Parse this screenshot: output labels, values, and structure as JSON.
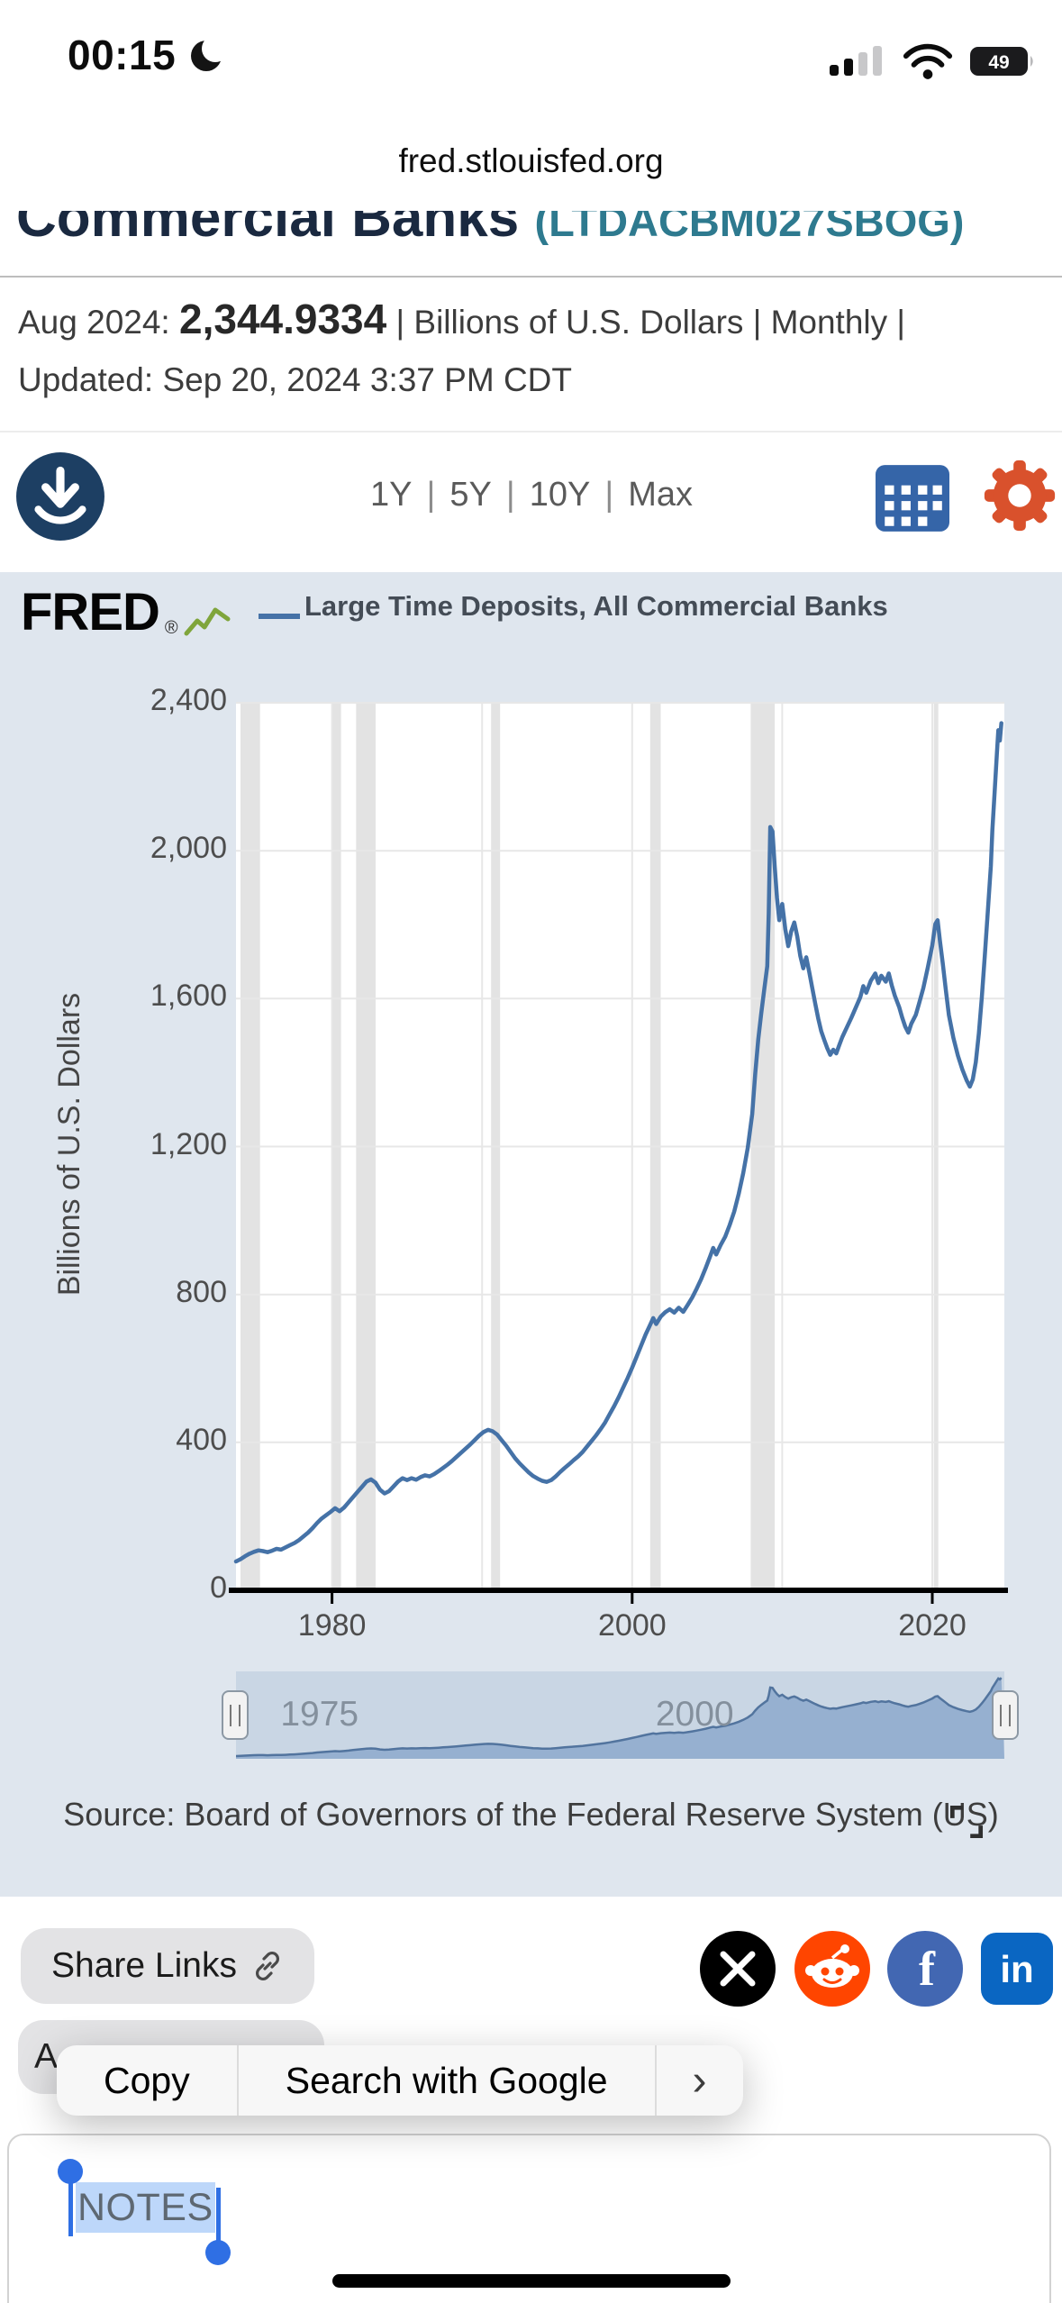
{
  "status_bar": {
    "time": "00:15",
    "battery_level": "49"
  },
  "url_bar": {
    "domain": "fred.stlouisfed.org"
  },
  "page_header": {
    "clipped_title": "Commercial Banks",
    "clipped_series_id": "(LTDACBM027SBOG)"
  },
  "series_info": {
    "date_label": "Aug 2024:",
    "value": "2,344.9334",
    "sep": "|",
    "units": "Billions of U.S. Dollars",
    "frequency": "Monthly",
    "updated_label": "Updated:",
    "updated": "Sep 20, 2024 3:37 PM CDT"
  },
  "toolbar": {
    "ranges": [
      "1Y",
      "5Y",
      "10Y",
      "Max"
    ],
    "separator": "|"
  },
  "chart_header": {
    "logo_text": "FRED",
    "logo_reg": "®",
    "legend_label": "Large Time Deposits, All Commercial Banks"
  },
  "chart_data": {
    "type": "line",
    "title": "Large Time Deposits, All Commercial Banks",
    "ylabel": "Billions of U.S. Dollars",
    "frequency": "Monthly",
    "last_point": {
      "date": "Aug 2024",
      "value": 2344.9334
    },
    "xlim": [
      1973.6,
      2024.8
    ],
    "ylim": [
      0,
      2400
    ],
    "yticks": [
      0,
      400,
      800,
      1200,
      1600,
      2000,
      2400
    ],
    "ytick_labels": [
      "0",
      "400",
      "800",
      "1,200",
      "1,600",
      "2,000",
      "2,400"
    ],
    "xticks": [
      1980,
      2000,
      2020
    ],
    "xtick_labels": [
      "1980",
      "2000",
      "2020"
    ],
    "grid_years": [
      1980,
      1990,
      2000,
      2010,
      2020
    ],
    "recessions": [
      [
        1973.9,
        1975.2
      ],
      [
        1980.0,
        1980.6
      ],
      [
        1981.6,
        1982.9
      ],
      [
        1990.6,
        1991.2
      ],
      [
        2001.2,
        2001.9
      ],
      [
        2007.9,
        2009.5
      ],
      [
        2020.1,
        2020.4
      ]
    ],
    "line_color": "#4572a7",
    "grid": true,
    "legend_position": "top",
    "slider": {
      "labels": [
        {
          "text": "1975",
          "year": 1975
        },
        {
          "text": "2000",
          "year": 2000
        }
      ]
    },
    "series": [
      {
        "name": "Large Time Deposits, All Commercial Banks",
        "points": [
          [
            1973.6,
            78
          ],
          [
            1973.9,
            84
          ],
          [
            1974.2,
            92
          ],
          [
            1974.5,
            99
          ],
          [
            1974.8,
            104
          ],
          [
            1975.1,
            108
          ],
          [
            1975.4,
            106
          ],
          [
            1975.7,
            103
          ],
          [
            1976,
            107
          ],
          [
            1976.3,
            112
          ],
          [
            1976.6,
            110
          ],
          [
            1976.9,
            116
          ],
          [
            1977.2,
            122
          ],
          [
            1977.5,
            128
          ],
          [
            1977.8,
            136
          ],
          [
            1978.1,
            146
          ],
          [
            1978.4,
            156
          ],
          [
            1978.7,
            168
          ],
          [
            1979,
            182
          ],
          [
            1979.3,
            194
          ],
          [
            1979.6,
            203
          ],
          [
            1979.9,
            212
          ],
          [
            1980.2,
            222
          ],
          [
            1980.5,
            214
          ],
          [
            1980.8,
            224
          ],
          [
            1981.1,
            238
          ],
          [
            1981.4,
            252
          ],
          [
            1981.7,
            266
          ],
          [
            1982,
            280
          ],
          [
            1982.3,
            294
          ],
          [
            1982.6,
            300
          ],
          [
            1982.9,
            291
          ],
          [
            1983.2,
            272
          ],
          [
            1983.5,
            262
          ],
          [
            1983.8,
            268
          ],
          [
            1984.1,
            281
          ],
          [
            1984.4,
            294
          ],
          [
            1984.7,
            303
          ],
          [
            1985,
            298
          ],
          [
            1985.3,
            303
          ],
          [
            1985.6,
            299
          ],
          [
            1985.9,
            306
          ],
          [
            1986.2,
            311
          ],
          [
            1986.5,
            308
          ],
          [
            1986.8,
            314
          ],
          [
            1987.1,
            322
          ],
          [
            1987.4,
            331
          ],
          [
            1987.7,
            340
          ],
          [
            1988,
            350
          ],
          [
            1988.3,
            361
          ],
          [
            1988.6,
            372
          ],
          [
            1988.9,
            383
          ],
          [
            1989.2,
            394
          ],
          [
            1989.5,
            406
          ],
          [
            1989.8,
            418
          ],
          [
            1990.1,
            428
          ],
          [
            1990.4,
            434
          ],
          [
            1990.7,
            430
          ],
          [
            1991,
            421
          ],
          [
            1991.3,
            406
          ],
          [
            1991.6,
            391
          ],
          [
            1991.9,
            374
          ],
          [
            1992.2,
            357
          ],
          [
            1992.5,
            343
          ],
          [
            1992.8,
            331
          ],
          [
            1993.1,
            319
          ],
          [
            1993.4,
            309
          ],
          [
            1993.7,
            302
          ],
          [
            1994,
            296
          ],
          [
            1994.3,
            293
          ],
          [
            1994.6,
            298
          ],
          [
            1994.9,
            308
          ],
          [
            1995.2,
            320
          ],
          [
            1995.5,
            331
          ],
          [
            1995.8,
            341
          ],
          [
            1996.1,
            352
          ],
          [
            1996.4,
            362
          ],
          [
            1996.7,
            374
          ],
          [
            1997,
            389
          ],
          [
            1997.3,
            404
          ],
          [
            1997.6,
            419
          ],
          [
            1997.9,
            436
          ],
          [
            1998.2,
            454
          ],
          [
            1998.5,
            476
          ],
          [
            1998.8,
            498
          ],
          [
            1999.1,
            522
          ],
          [
            1999.4,
            548
          ],
          [
            1999.7,
            574
          ],
          [
            2000,
            602
          ],
          [
            2000.3,
            632
          ],
          [
            2000.6,
            662
          ],
          [
            2000.9,
            692
          ],
          [
            2001.2,
            718
          ],
          [
            2001.4,
            736
          ],
          [
            2001.6,
            720
          ],
          [
            2001.9,
            740
          ],
          [
            2002.2,
            752
          ],
          [
            2002.5,
            760
          ],
          [
            2002.8,
            751
          ],
          [
            2003.1,
            764
          ],
          [
            2003.4,
            753
          ],
          [
            2003.7,
            772
          ],
          [
            2004,
            792
          ],
          [
            2004.3,
            816
          ],
          [
            2004.6,
            842
          ],
          [
            2004.9,
            872
          ],
          [
            2005.2,
            904
          ],
          [
            2005.4,
            926
          ],
          [
            2005.6,
            908
          ],
          [
            2005.9,
            934
          ],
          [
            2006.2,
            956
          ],
          [
            2006.5,
            988
          ],
          [
            2006.8,
            1024
          ],
          [
            2007.1,
            1072
          ],
          [
            2007.4,
            1128
          ],
          [
            2007.7,
            1196
          ],
          [
            2008,
            1288
          ],
          [
            2008.2,
            1396
          ],
          [
            2008.4,
            1490
          ],
          [
            2008.6,
            1560
          ],
          [
            2008.8,
            1624
          ],
          [
            2009,
            1688
          ],
          [
            2009.1,
            1830
          ],
          [
            2009.2,
            2064
          ],
          [
            2009.35,
            2052
          ],
          [
            2009.5,
            1956
          ],
          [
            2009.65,
            1872
          ],
          [
            2009.8,
            1812
          ],
          [
            2010,
            1856
          ],
          [
            2010.2,
            1788
          ],
          [
            2010.4,
            1742
          ],
          [
            2010.6,
            1782
          ],
          [
            2010.8,
            1806
          ],
          [
            2011,
            1768
          ],
          [
            2011.2,
            1716
          ],
          [
            2011.4,
            1682
          ],
          [
            2011.6,
            1712
          ],
          [
            2011.8,
            1672
          ],
          [
            2012,
            1628
          ],
          [
            2012.2,
            1586
          ],
          [
            2012.4,
            1546
          ],
          [
            2012.6,
            1512
          ],
          [
            2012.8,
            1488
          ],
          [
            2013,
            1466
          ],
          [
            2013.2,
            1448
          ],
          [
            2013.4,
            1462
          ],
          [
            2013.6,
            1452
          ],
          [
            2013.8,
            1474
          ],
          [
            2014,
            1496
          ],
          [
            2014.3,
            1522
          ],
          [
            2014.6,
            1548
          ],
          [
            2014.9,
            1576
          ],
          [
            2015.2,
            1604
          ],
          [
            2015.4,
            1634
          ],
          [
            2015.6,
            1616
          ],
          [
            2015.9,
            1648
          ],
          [
            2016.2,
            1668
          ],
          [
            2016.4,
            1642
          ],
          [
            2016.6,
            1662
          ],
          [
            2016.9,
            1646
          ],
          [
            2017.1,
            1668
          ],
          [
            2017.3,
            1636
          ],
          [
            2017.5,
            1608
          ],
          [
            2017.8,
            1576
          ],
          [
            2018,
            1548
          ],
          [
            2018.2,
            1524
          ],
          [
            2018.4,
            1508
          ],
          [
            2018.6,
            1532
          ],
          [
            2018.9,
            1556
          ],
          [
            2019.1,
            1584
          ],
          [
            2019.4,
            1628
          ],
          [
            2019.7,
            1684
          ],
          [
            2020,
            1744
          ],
          [
            2020.2,
            1802
          ],
          [
            2020.35,
            1812
          ],
          [
            2020.5,
            1758
          ],
          [
            2020.7,
            1694
          ],
          [
            2020.9,
            1624
          ],
          [
            2021.1,
            1556
          ],
          [
            2021.4,
            1494
          ],
          [
            2021.7,
            1446
          ],
          [
            2022,
            1408
          ],
          [
            2022.3,
            1378
          ],
          [
            2022.5,
            1362
          ],
          [
            2022.7,
            1382
          ],
          [
            2022.9,
            1428
          ],
          [
            2023.1,
            1506
          ],
          [
            2023.3,
            1604
          ],
          [
            2023.5,
            1716
          ],
          [
            2023.7,
            1838
          ],
          [
            2023.9,
            1958
          ],
          [
            2024,
            2056
          ],
          [
            2024.15,
            2158
          ],
          [
            2024.3,
            2262
          ],
          [
            2024.4,
            2326
          ],
          [
            2024.5,
            2298
          ],
          [
            2024.6,
            2344.9
          ]
        ]
      }
    ]
  },
  "source_line": {
    "text": "Source: Board of Governors of the Federal Reserve System (US)"
  },
  "share": {
    "share_links_label": "Share Links",
    "partial_button_label": "A",
    "social": [
      "x",
      "reddit",
      "facebook",
      "linkedin"
    ]
  },
  "context_menu": {
    "items": [
      "Copy",
      "Search with Google"
    ],
    "chevron": "›"
  },
  "notes": {
    "label": "NOTES"
  },
  "colors": {
    "accent_line": "#4572a7",
    "panel_bg": "#dfe6ee",
    "recession_band": "#e3e3e3",
    "download_btn": "#1d3f63",
    "calendar_btn": "#3565a8",
    "gear_btn": "#d9512c",
    "x_brand": "#000000",
    "reddit_brand": "#ff4500",
    "facebook_brand": "#4267b2",
    "linkedin_brand": "#0a66c2",
    "selection": "#bdd7fa",
    "selection_handle": "#2f6fe4"
  }
}
